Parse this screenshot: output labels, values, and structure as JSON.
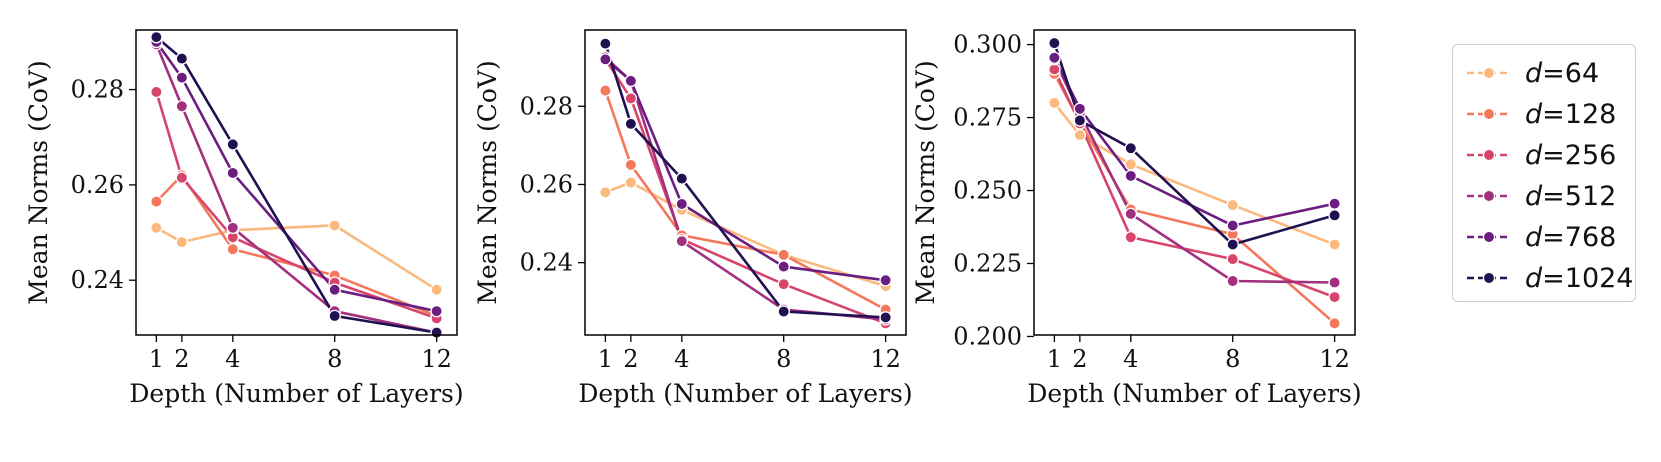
{
  "chart_data": [
    {
      "type": "line",
      "title": "",
      "xlabel": "Depth (Number of Layers)",
      "ylabel": "Mean Norms (CoV)",
      "x": [
        1,
        2,
        4,
        8,
        12
      ],
      "xticks": [
        "1",
        "2",
        "4",
        "8",
        "12"
      ],
      "xlim": [
        0.2,
        12.8
      ],
      "ylim": [
        0.2285,
        0.2925
      ],
      "yticks": [
        0.24,
        0.26,
        0.28
      ],
      "ytick_labels": [
        "0.24",
        "0.26",
        "0.28"
      ],
      "series": [
        {
          "name": "d=64",
          "values": [
            0.251,
            0.248,
            0.2505,
            0.2515,
            0.238
          ]
        },
        {
          "name": "d=128",
          "values": [
            0.2565,
            0.262,
            0.2465,
            0.241,
            0.2325
          ]
        },
        {
          "name": "d=256",
          "values": [
            0.2795,
            0.2615,
            0.249,
            0.2395,
            0.232
          ]
        },
        {
          "name": "d=512",
          "values": [
            0.2895,
            0.2765,
            0.251,
            0.2335,
            0.229
          ]
        },
        {
          "name": "d=768",
          "values": [
            0.29,
            0.2825,
            0.2625,
            0.238,
            0.2335
          ]
        },
        {
          "name": "d=1024",
          "values": [
            0.291,
            0.2865,
            0.2685,
            0.2325,
            0.229
          ]
        }
      ]
    },
    {
      "type": "line",
      "title": "",
      "xlabel": "Depth (Number of Layers)",
      "ylabel": "Mean Norms (CoV)",
      "x": [
        1,
        2,
        4,
        8,
        12
      ],
      "xticks": [
        "1",
        "2",
        "4",
        "8",
        "12"
      ],
      "xlim": [
        0.2,
        12.8
      ],
      "ylim": [
        0.2215,
        0.2995
      ],
      "yticks": [
        0.24,
        0.26,
        0.28
      ],
      "ytick_labels": [
        "0.24",
        "0.26",
        "0.28"
      ],
      "series": [
        {
          "name": "d=64",
          "values": [
            0.258,
            0.2605,
            0.2535,
            0.242,
            0.234
          ]
        },
        {
          "name": "d=128",
          "values": [
            0.284,
            0.265,
            0.247,
            0.242,
            0.228
          ]
        },
        {
          "name": "d=256",
          "values": [
            0.292,
            0.282,
            0.246,
            0.2345,
            0.2245
          ]
        },
        {
          "name": "d=512",
          "values": [
            0.2925,
            0.2865,
            0.2455,
            0.228,
            0.2255
          ]
        },
        {
          "name": "d=768",
          "values": [
            0.292,
            0.2865,
            0.255,
            0.239,
            0.2355
          ]
        },
        {
          "name": "d=1024",
          "values": [
            0.296,
            0.2755,
            0.2615,
            0.2275,
            0.226
          ]
        }
      ]
    },
    {
      "type": "line",
      "title": "",
      "xlabel": "Depth (Number of Layers)",
      "ylabel": "Mean Norms (CoV)",
      "x": [
        1,
        2,
        4,
        8,
        12
      ],
      "xticks": [
        "1",
        "2",
        "4",
        "8",
        "12"
      ],
      "xlim": [
        0.2,
        12.8
      ],
      "ylim": [
        0.2005,
        0.305
      ],
      "yticks": [
        0.2,
        0.225,
        0.25,
        0.275,
        0.3
      ],
      "ytick_labels": [
        "0.200",
        "0.225",
        "0.250",
        "0.275",
        "0.300"
      ],
      "series": [
        {
          "name": "d=64",
          "values": [
            0.28,
            0.269,
            0.259,
            0.245,
            0.2315
          ]
        },
        {
          "name": "d=128",
          "values": [
            0.29,
            0.2735,
            0.2435,
            0.235,
            0.2045
          ]
        },
        {
          "name": "d=256",
          "values": [
            0.2915,
            0.273,
            0.234,
            0.2265,
            0.2135
          ]
        },
        {
          "name": "d=512",
          "values": [
            0.295,
            0.2765,
            0.242,
            0.219,
            0.2185
          ]
        },
        {
          "name": "d=768",
          "values": [
            0.2955,
            0.278,
            0.255,
            0.238,
            0.2455
          ]
        },
        {
          "name": "d=1024",
          "values": [
            0.3005,
            0.274,
            0.2645,
            0.2315,
            0.2415
          ]
        }
      ]
    }
  ],
  "legend": {
    "placement": "right",
    "items": [
      {
        "prefix": "d",
        "label": "=64",
        "color": "#fbb97e"
      },
      {
        "prefix": "d",
        "label": "=128",
        "color": "#f4785c"
      },
      {
        "prefix": "d",
        "label": "=256",
        "color": "#d8456c"
      },
      {
        "prefix": "d",
        "label": "=512",
        "color": "#a3307e"
      },
      {
        "prefix": "d",
        "label": "=768",
        "color": "#6b1e80"
      },
      {
        "prefix": "d",
        "label": "=1024",
        "color": "#221150"
      }
    ]
  }
}
